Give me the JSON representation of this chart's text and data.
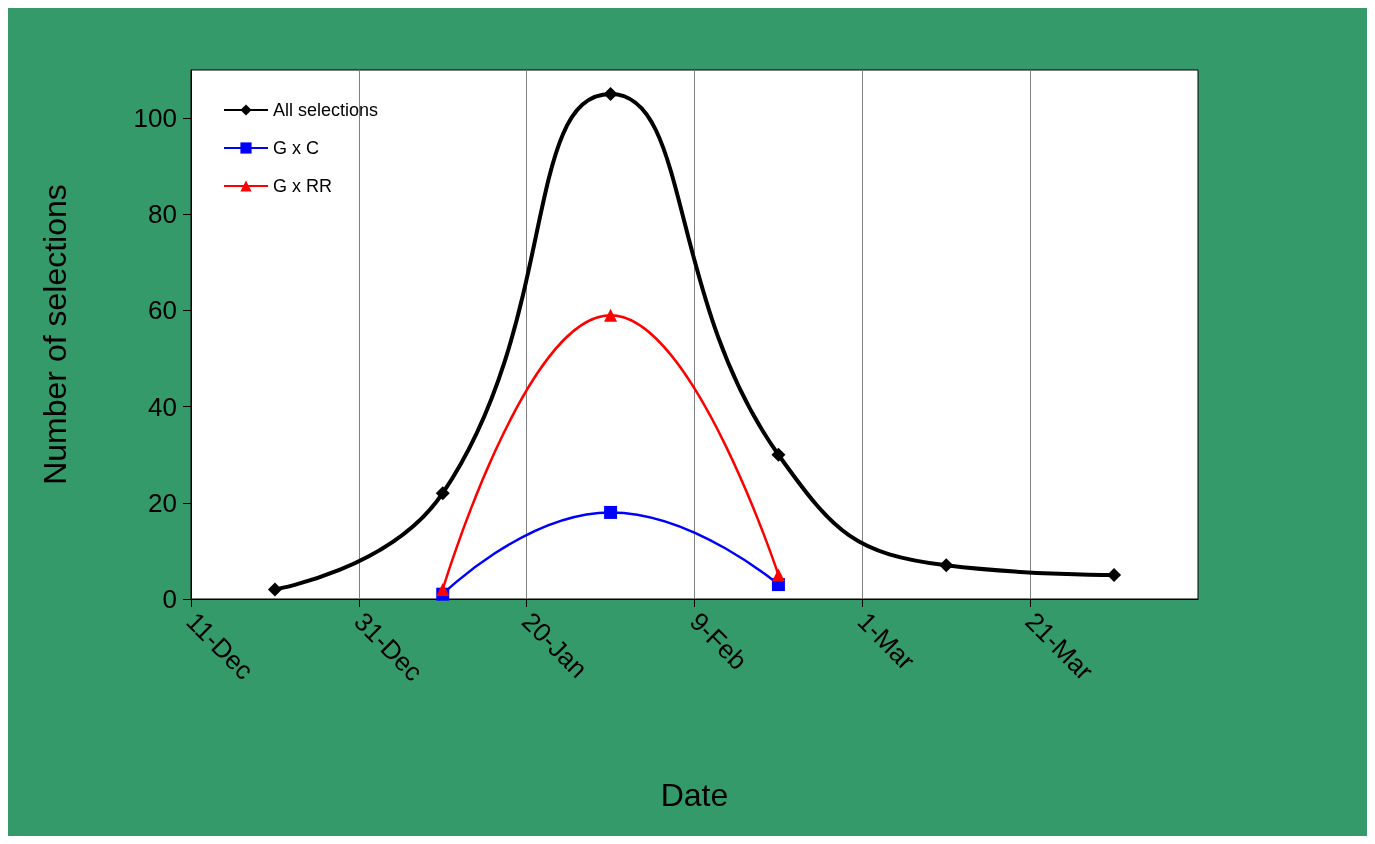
{
  "chart_data": {
    "type": "line",
    "xlabel": "Date",
    "ylabel": "Number of selections",
    "categories": [
      "11-Dec",
      null,
      "31-Dec",
      null,
      "20-Jan",
      null,
      "9-Feb",
      null,
      "1-Mar",
      null,
      "21-Mar",
      null,
      null
    ],
    "series": [
      {
        "name": "All selections",
        "color": "#000000",
        "marker": "diamond",
        "values": [
          null,
          2,
          null,
          22,
          null,
          105,
          null,
          30,
          null,
          7,
          null,
          5,
          null
        ]
      },
      {
        "name": "G x C",
        "color": "#0000ff",
        "marker": "square",
        "values": [
          null,
          null,
          null,
          1,
          null,
          18,
          null,
          3,
          null,
          null,
          null,
          null,
          null
        ]
      },
      {
        "name": "G x RR",
        "color": "#ff0000",
        "marker": "triangle",
        "values": [
          null,
          null,
          null,
          2,
          null,
          59,
          null,
          5,
          null,
          null,
          null,
          null,
          null
        ]
      }
    ],
    "ylim": [
      0,
      110
    ],
    "yticks": [
      0,
      20,
      40,
      60,
      80,
      100
    ],
    "grid": "x",
    "legend": "top left",
    "line_style": "solid"
  }
}
